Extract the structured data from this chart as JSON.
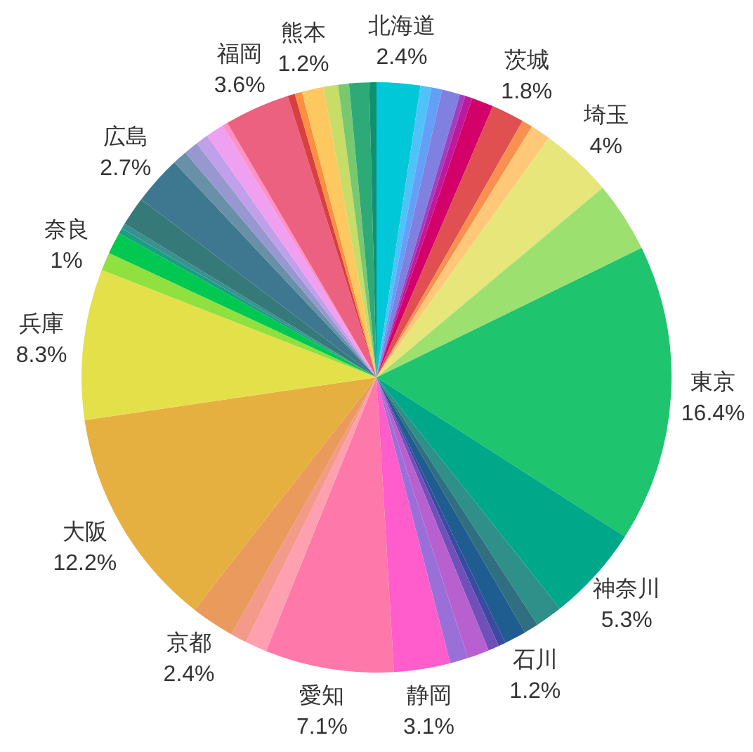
{
  "chart_data": {
    "type": "pie",
    "categories": [
      "北海道",
      null,
      null,
      null,
      null,
      null,
      null,
      "茨城",
      null,
      null,
      "埼玉",
      null,
      "東京",
      "神奈川",
      null,
      null,
      "石川",
      null,
      null,
      null,
      null,
      "静岡",
      "愛知",
      null,
      null,
      "京都",
      "大阪",
      "兵庫",
      "奈良",
      null,
      null,
      null,
      null,
      "広島",
      null,
      null,
      null,
      null,
      null,
      "福岡",
      null,
      null,
      "熊本",
      null,
      null,
      null,
      null
    ],
    "values": [
      2.4,
      0.6,
      0.6,
      1.0,
      0.3,
      0.4,
      1.2,
      1.8,
      0.6,
      1.1,
      4,
      3.9,
      16.4,
      5.3,
      1.5,
      0.8,
      1.2,
      0.4,
      0.6,
      1.2,
      1.0,
      3.1,
      7.1,
      1.2,
      0.9,
      2.4,
      12.2,
      8.3,
      1,
      1.2,
      0.3,
      0.3,
      1.6,
      2.7,
      0.8,
      0.8,
      0.7,
      1.0,
      0.3,
      3.6,
      0.4,
      0.4,
      1.2,
      0.8,
      0.6,
      1.1,
      0.4
    ],
    "value_labels": [
      "2.4%",
      null,
      null,
      null,
      null,
      null,
      null,
      "1.8%",
      null,
      null,
      "4%",
      null,
      "16.4%",
      "5.3%",
      null,
      null,
      "1.2%",
      null,
      null,
      null,
      null,
      "3.1%",
      "7.1%",
      null,
      null,
      "2.4%",
      "12.2%",
      "8.3%",
      "1%",
      null,
      null,
      null,
      null,
      "2.7%",
      null,
      null,
      null,
      null,
      null,
      "3.6%",
      null,
      null,
      "1.2%",
      null,
      null,
      null,
      null
    ],
    "colors": [
      "#00c8d8",
      "#4fc3f7",
      "#64a0f8",
      "#8080e0",
      "#a040c0",
      "#c0189c",
      "#d4006a",
      "#e05050",
      "#f89050",
      "#fec878",
      "#e6e67a",
      "#9ce070",
      "#1ec46e",
      "#00a88a",
      "#2e9088",
      "#2f6f80",
      "#1f5c90",
      "#3a4aa0",
      "#7050b8",
      "#b860d0",
      "#9a70d8",
      "#ff5ccc",
      "#ff78aa",
      "#ffa0b0",
      "#f49a8a",
      "#ea9a5c",
      "#e6b040",
      "#e4e04a",
      "#90e040",
      "#00c850",
      "#18a080",
      "#3a9090",
      "#357a78",
      "#3d7890",
      "#6890a8",
      "#9898d0",
      "#c0a0e8",
      "#f0a0f0",
      "#ff90c8",
      "#ec6080",
      "#d84040",
      "#fa9040",
      "#fec860",
      "#c8dc68",
      "#78c870",
      "#2eaa78",
      "#109070"
    ],
    "legend": false
  }
}
